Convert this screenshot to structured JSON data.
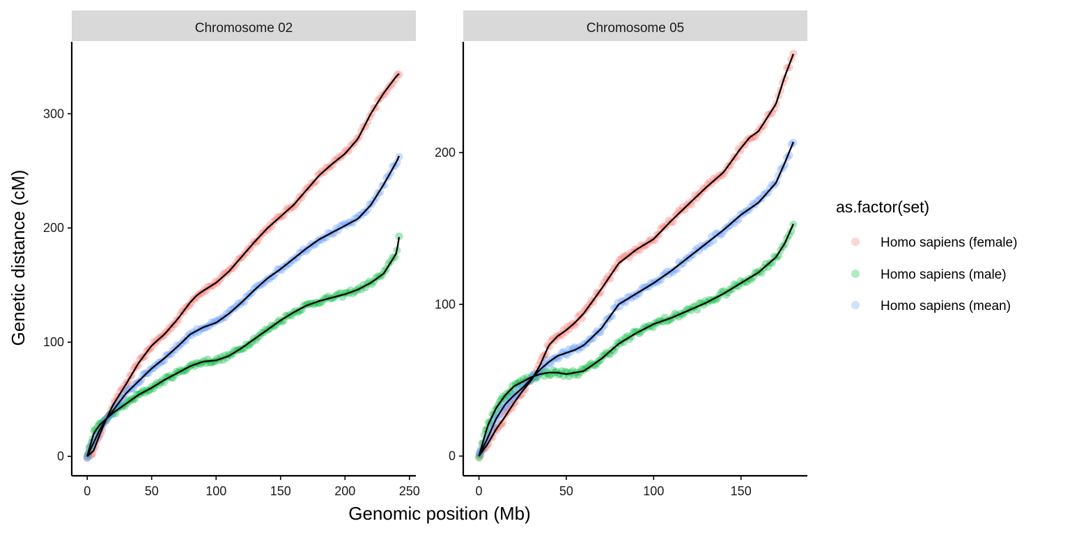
{
  "chart_data": [
    {
      "type": "scatter",
      "panel": "Chromosome 02",
      "xlabel": "Genomic position (Mb)",
      "ylabel": "Genetic distance (cM)",
      "xlim": [
        -12,
        255
      ],
      "ylim": [
        -17,
        363
      ],
      "x_ticks": [
        0,
        50,
        100,
        150,
        200,
        250
      ],
      "y_ticks": [
        0,
        100,
        200,
        300
      ],
      "series": [
        {
          "name": "Homo sapiens (female)",
          "color": "#F8766D",
          "x": [
            0,
            5,
            10,
            15,
            20,
            30,
            40,
            50,
            60,
            70,
            80,
            85,
            90,
            100,
            110,
            120,
            130,
            140,
            150,
            160,
            170,
            180,
            190,
            200,
            210,
            220,
            230,
            240,
            242
          ],
          "y": [
            0,
            5,
            20,
            33,
            45,
            63,
            82,
            97,
            107,
            120,
            135,
            141,
            145,
            152,
            162,
            175,
            188,
            200,
            210,
            220,
            233,
            246,
            256,
            265,
            278,
            300,
            318,
            333,
            335
          ]
        },
        {
          "name": "Homo sapiens (male)",
          "color": "#00BA38",
          "x": [
            0,
            5,
            10,
            15,
            20,
            30,
            40,
            50,
            60,
            70,
            80,
            90,
            100,
            110,
            120,
            130,
            140,
            150,
            160,
            170,
            180,
            190,
            200,
            210,
            220,
            230,
            240,
            242
          ],
          "y": [
            0,
            20,
            28,
            33,
            38,
            46,
            54,
            60,
            67,
            73,
            79,
            83,
            84,
            88,
            95,
            103,
            111,
            119,
            126,
            132,
            136,
            139,
            142,
            146,
            152,
            160,
            178,
            192
          ]
        },
        {
          "name": "Homo sapiens (mean)",
          "color": "#619CFF",
          "x": [
            0,
            5,
            10,
            15,
            20,
            30,
            40,
            50,
            60,
            70,
            80,
            90,
            100,
            110,
            120,
            130,
            140,
            150,
            160,
            170,
            180,
            190,
            200,
            210,
            220,
            230,
            240,
            242
          ],
          "y": [
            0,
            12,
            24,
            33,
            40,
            55,
            66,
            77,
            86,
            96,
            107,
            113,
            117,
            125,
            135,
            146,
            156,
            164,
            173,
            182,
            190,
            196,
            202,
            208,
            220,
            238,
            258,
            263
          ]
        }
      ]
    },
    {
      "type": "scatter",
      "panel": "Chromosome 05",
      "xlabel": "Genomic position (Mb)",
      "ylabel": "Genetic distance (cM)",
      "xlim": [
        -9,
        188
      ],
      "ylim": [
        -13,
        273
      ],
      "x_ticks": [
        0,
        50,
        100,
        150
      ],
      "y_ticks": [
        0,
        100,
        200
      ],
      "series": [
        {
          "name": "Homo sapiens (female)",
          "color": "#F8766D",
          "x": [
            0,
            5,
            10,
            15,
            20,
            25,
            30,
            35,
            40,
            45,
            50,
            55,
            60,
            70,
            80,
            90,
            100,
            110,
            120,
            130,
            140,
            150,
            155,
            160,
            170,
            175,
            180
          ],
          "y": [
            0,
            8,
            18,
            26,
            35,
            43,
            50,
            60,
            73,
            79,
            83,
            88,
            94,
            110,
            127,
            136,
            143,
            155,
            166,
            177,
            187,
            203,
            210,
            214,
            232,
            250,
            265
          ]
        },
        {
          "name": "Homo sapiens (male)",
          "color": "#00BA38",
          "x": [
            0,
            5,
            10,
            15,
            20,
            25,
            30,
            35,
            40,
            45,
            50,
            55,
            60,
            70,
            80,
            90,
            100,
            110,
            120,
            130,
            140,
            150,
            160,
            170,
            175,
            180
          ],
          "y": [
            0,
            20,
            32,
            40,
            46,
            49,
            52,
            54,
            55,
            55,
            54,
            55,
            56,
            64,
            74,
            81,
            87,
            91,
            96,
            101,
            107,
            114,
            121,
            131,
            140,
            153
          ]
        },
        {
          "name": "Homo sapiens (mean)",
          "color": "#619CFF",
          "x": [
            0,
            5,
            10,
            15,
            20,
            25,
            30,
            35,
            40,
            45,
            50,
            55,
            60,
            70,
            80,
            90,
            100,
            110,
            120,
            130,
            140,
            150,
            160,
            170,
            175,
            180
          ],
          "y": [
            0,
            12,
            25,
            34,
            40,
            45,
            51,
            57,
            62,
            66,
            68,
            70,
            73,
            84,
            100,
            107,
            114,
            122,
            131,
            140,
            149,
            159,
            167,
            180,
            193,
            207
          ]
        }
      ]
    }
  ],
  "legend": {
    "title": "as.factor(set)",
    "items": [
      {
        "label": "Homo sapiens (female)",
        "color": "#F8766D"
      },
      {
        "label": "Homo sapiens (male)",
        "color": "#00BA38"
      },
      {
        "label": "Homo sapiens (mean)",
        "color": "#619CFF"
      }
    ]
  },
  "axis_titles": {
    "x": "Genomic position (Mb)",
    "y": "Genetic distance (cM)"
  }
}
